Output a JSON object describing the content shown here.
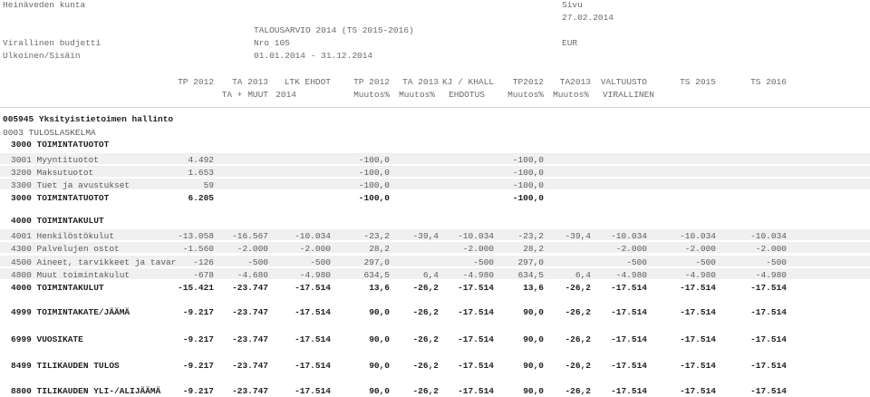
{
  "header": {
    "org": "Heinäveden kunta",
    "page_label": "Sivu",
    "date": "27.02.2014",
    "report_title": "TALOUSARVIO 2014 (TS 2015-2016)",
    "budget_label": "Virallinen budjetti",
    "report_no": "Nro 105",
    "currency": "EUR",
    "scope_label": "Ulkoinen/Sisäin",
    "period": "01.01.2014 - 31.12.2014"
  },
  "columns": {
    "top": [
      "TP 2012",
      "TA 2013",
      "LTK EHDOT",
      "TP 2012",
      "TA 2013",
      "KJ / KHALL",
      "TP2012",
      "TA2013",
      "VALTUUSTO",
      "TS 2015",
      "TS 2016"
    ],
    "bottom": [
      "TA + MUUT",
      "2014",
      "Muutos%",
      "Muutos%",
      "EHDOTUS",
      "Muutos%",
      "Muutos%",
      "VIRALLINEN"
    ]
  },
  "unit": "005945 Yksityistietoimen hallinto",
  "account": "0003 TULOSLASKELMA",
  "rows": [
    {
      "label": "3000 TOIMINTATUOTOT",
      "bold": true,
      "section": true,
      "cells": [
        "",
        "",
        "",
        "",
        "",
        "",
        "",
        "",
        "",
        "",
        ""
      ]
    },
    {
      "label": "3001 Myyntituotot",
      "bold": false,
      "cells": [
        "4.492",
        "",
        "",
        "-100,0",
        "",
        "",
        "-100,0",
        "",
        "",
        "",
        ""
      ]
    },
    {
      "label": "3200 Maksutuotot",
      "bold": false,
      "cells": [
        "1.653",
        "",
        "",
        "-100,0",
        "",
        "",
        "-100,0",
        "",
        "",
        "",
        ""
      ]
    },
    {
      "label": "3300 Tuet ja avustukset",
      "bold": false,
      "cells": [
        "59",
        "",
        "",
        "-100,0",
        "",
        "",
        "-100,0",
        "",
        "",
        "",
        ""
      ]
    },
    {
      "label": "3000 TOIMINTATUOTOT",
      "bold": true,
      "cells": [
        "6.205",
        "",
        "",
        "-100,0",
        "",
        "",
        "-100,0",
        "",
        "",
        "",
        ""
      ]
    },
    {
      "label": "4000 TOIMINTAKULUT",
      "bold": true,
      "section": true,
      "cells": [
        "",
        "",
        "",
        "",
        "",
        "",
        "",
        "",
        "",
        "",
        ""
      ]
    },
    {
      "label": "4001 Henkilöstökulut",
      "bold": false,
      "cells": [
        "-13.058",
        "-16.567",
        "-10.034",
        "-23,2",
        "-39,4",
        "-10.034",
        "-23,2",
        "-39,4",
        "-10.034",
        "-10.034",
        "-10.034"
      ]
    },
    {
      "label": "4300 Palvelujen ostot",
      "bold": false,
      "cells": [
        "-1.560",
        "-2.000",
        "-2.000",
        "28,2",
        "",
        "-2.000",
        "28,2",
        "",
        "-2.000",
        "-2.000",
        "-2.000"
      ]
    },
    {
      "label": "4500 Aineet, tarvikkeet ja tavar",
      "bold": false,
      "cells": [
        "-126",
        "-500",
        "-500",
        "297,0",
        "",
        "-500",
        "297,0",
        "",
        "-500",
        "-500",
        "-500"
      ]
    },
    {
      "label": "4800 Muut toimintakulut",
      "bold": false,
      "cells": [
        "-678",
        "-4.680",
        "-4.980",
        "634,5",
        "6,4",
        "-4.980",
        "634,5",
        "6,4",
        "-4.980",
        "-4.980",
        "-4.980"
      ]
    },
    {
      "label": "4000 TOIMINTAKULUT",
      "bold": true,
      "cells": [
        "-15.421",
        "-23.747",
        "-17.514",
        "13,6",
        "-26,2",
        "-17.514",
        "13,6",
        "-26,2",
        "-17.514",
        "-17.514",
        "-17.514"
      ]
    },
    {
      "label": "4999 TOIMINTAKATE/JÄÄMÄ",
      "bold": true,
      "cells": [
        "-9.217",
        "-23.747",
        "-17.514",
        "90,0",
        "-26,2",
        "-17.514",
        "90,0",
        "-26,2",
        "-17.514",
        "-17.514",
        "-17.514"
      ]
    },
    {
      "label": "6999 VUOSIKATE",
      "bold": true,
      "cells": [
        "-9.217",
        "-23.747",
        "-17.514",
        "90,0",
        "-26,2",
        "-17.514",
        "90,0",
        "-26,2",
        "-17.514",
        "-17.514",
        "-17.514"
      ]
    },
    {
      "label": "8499 TILIKAUDEN TULOS",
      "bold": true,
      "cells": [
        "-9.217",
        "-23.747",
        "-17.514",
        "90,0",
        "-26,2",
        "-17.514",
        "90,0",
        "-26,2",
        "-17.514",
        "-17.514",
        "-17.514"
      ]
    },
    {
      "label": "8800 TILIKAUDEN YLI-/ALIJÄÄMÄ",
      "bold": true,
      "cells": [
        "-9.217",
        "-23.747",
        "-17.514",
        "90,0",
        "-26,2",
        "-17.514",
        "90,0",
        "-26,2",
        "-17.514",
        "-17.514",
        "-17.514"
      ]
    }
  ]
}
